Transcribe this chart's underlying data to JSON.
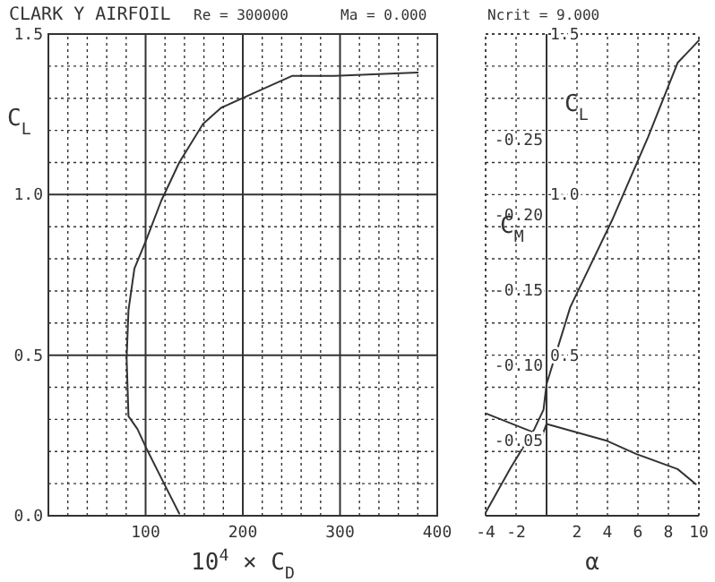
{
  "chart_data": [
    {
      "type": "line",
      "title": "CLARK Y AIRFOIL",
      "annotations": [
        "Re = 300000",
        "Ma = 0.000",
        "Ncrit = 9.000"
      ],
      "xlabel": "10$^{4}$ × C$_{D}$",
      "ylabel": "C$_{L}$",
      "xlim": [
        0,
        400
      ],
      "ylim": [
        0,
        1.5
      ],
      "xticks": [
        {
          "value": 20,
          "label": null
        },
        {
          "value": 40,
          "label": null
        },
        {
          "value": 60,
          "label": null
        },
        {
          "value": 80,
          "label": null
        },
        100,
        {
          "value": 120,
          "label": null
        },
        {
          "value": 140,
          "label": null
        },
        {
          "value": 160,
          "label": null
        },
        {
          "value": 180,
          "label": null
        },
        200,
        {
          "value": 220,
          "label": null
        },
        {
          "value": 240,
          "label": null
        },
        {
          "value": 260,
          "label": null
        },
        {
          "value": 280,
          "label": null
        },
        300,
        {
          "value": 320,
          "label": null
        },
        {
          "value": 340,
          "label": null
        },
        {
          "value": 360,
          "label": null
        },
        {
          "value": 380,
          "label": null
        },
        400
      ],
      "yticks": [
        {
          "value": 0,
          "label": "0.0"
        },
        {
          "value": 0.1,
          "label": null
        },
        {
          "value": 0.2,
          "label": null
        },
        {
          "value": 0.3,
          "label": null
        },
        {
          "value": 0.4,
          "label": null
        },
        {
          "value": 0.5,
          "label": "0.5"
        },
        {
          "value": 0.6,
          "label": null
        },
        {
          "value": 0.7,
          "label": null
        },
        {
          "value": 0.8,
          "label": null
        },
        {
          "value": 0.9,
          "label": null
        },
        {
          "value": 1,
          "label": "1.0"
        },
        {
          "value": 1.1,
          "label": null
        },
        {
          "value": 1.2,
          "label": null
        },
        {
          "value": 1.3,
          "label": null
        },
        {
          "value": 1.4,
          "label": null
        },
        {
          "value": 1.5,
          "label": "1.5"
        }
      ],
      "grid": true,
      "series": [
        {
          "color": "#333333",
          "x": [
            134.6,
            119,
            100.8,
            91.6,
            82.4,
            80.5,
            82.4,
            88.5,
            100.8,
            116,
            134.6,
            159,
            177.5,
            214,
            251,
            294,
            380
          ],
          "values": [
            0.007,
            0.1,
            0.21,
            0.27,
            0.31,
            0.49,
            0.64,
            0.77,
            0.86,
            0.98,
            1.1,
            1.22,
            1.27,
            1.32,
            1.37,
            1.37,
            1.38
          ]
        }
      ]
    },
    {
      "type": "line",
      "xlabel": "α",
      "ylabel": "C$_{L}$",
      "y2label": "C$_{M}$",
      "xlim": [
        -4,
        10
      ],
      "ylim": [
        0,
        1.5
      ],
      "y2lim": [
        0,
        -0.32
      ],
      "xticks": [
        -4,
        -2,
        {
          "value": 0,
          "label": null
        },
        2,
        4,
        6,
        8,
        10
      ],
      "yticks": [
        {
          "value": 0.1,
          "label": null
        },
        {
          "value": 0.2,
          "label": null
        },
        {
          "value": 0.3,
          "label": null
        },
        {
          "value": 0.4,
          "label": null
        },
        0.5,
        {
          "value": 0.6,
          "label": null
        },
        {
          "value": 0.7,
          "label": null
        },
        {
          "value": 0.8,
          "label": null
        },
        {
          "value": 0.9,
          "label": null
        },
        {
          "value": 1,
          "label": "1.0"
        },
        {
          "value": 1.1,
          "label": null
        },
        {
          "value": 1.2,
          "label": null
        },
        {
          "value": 1.3,
          "label": null
        },
        {
          "value": 1.4,
          "label": null
        },
        1.5
      ],
      "y2ticks": [
        -0.05,
        {
          "value": -0.1,
          "label": "-0.10"
        },
        -0.15,
        {
          "value": -0.2,
          "label": "-0.20"
        },
        -0.25
      ],
      "grid": true,
      "series": [
        {
          "color": "#333333",
          "x": [
            -4,
            -2.35,
            -0.8,
            -0.2,
            0,
            1.56,
            4.3,
            6.67,
            8.6,
            9.6,
            10
          ],
          "values": [
            0.01,
            0.15,
            0.27,
            0.33,
            0.41,
            0.65,
            0.92,
            1.18,
            1.41,
            1.46,
            1.48
          ]
        },
        {
          "color": "#333333",
          "axis": "y2",
          "x": [
            -4,
            -1,
            -0.4,
            0,
            3.9,
            5.9,
            8.6,
            9.8
          ],
          "values": [
            -0.068,
            -0.056,
            -0.05,
            -0.061,
            -0.05,
            -0.041,
            -0.031,
            -0.021
          ]
        }
      ]
    }
  ]
}
